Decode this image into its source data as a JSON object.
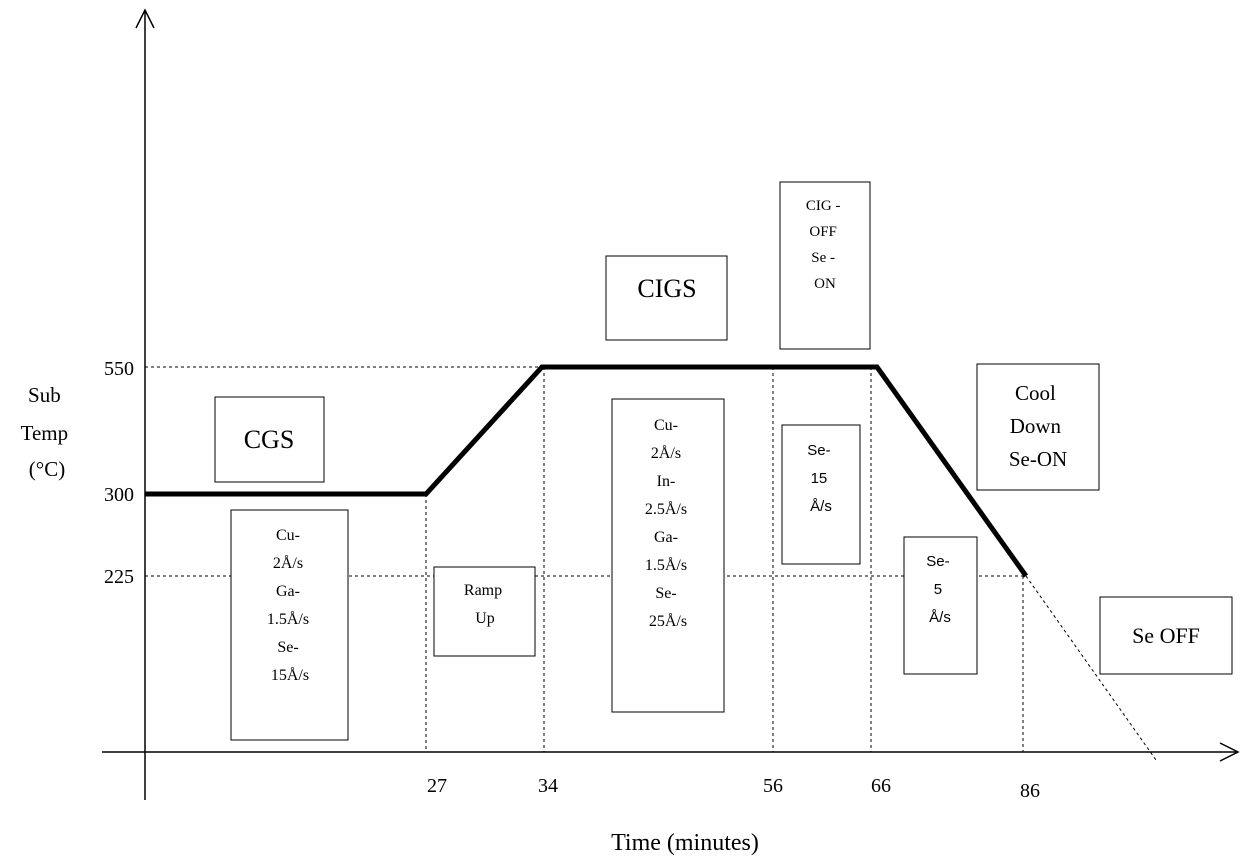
{
  "y_axis_label": [
    "Sub",
    "Temp",
    "(°C)"
  ],
  "x_axis_label": "Time (minutes)",
  "y_ticks": [
    {
      "label": "550",
      "value": 550
    },
    {
      "label": "300",
      "value": 300
    },
    {
      "label": "225",
      "value": 225
    }
  ],
  "x_ticks": [
    {
      "label": "27",
      "value": 27
    },
    {
      "label": "34",
      "value": 34
    },
    {
      "label": "56",
      "value": 56
    },
    {
      "label": "66",
      "value": 66
    },
    {
      "label": "86",
      "value": 86
    }
  ],
  "temperature_profile": [
    {
      "t": 0,
      "temp": 300
    },
    {
      "t": 27,
      "temp": 300
    },
    {
      "t": 34,
      "temp": 550
    },
    {
      "t": 66,
      "temp": 550
    },
    {
      "t": 86,
      "temp": 225
    }
  ],
  "boxes": {
    "cgs_title": [
      "CGS"
    ],
    "cgs_rates": [
      "Cu-",
      "2Å/s",
      "Ga-",
      "1.5Å/s",
      "Se-",
      "15Å/s"
    ],
    "ramp_up": [
      "Ramp",
      "Up"
    ],
    "cigs_title": [
      "CIGS"
    ],
    "cigs_rates": [
      "Cu-",
      "2Å/s",
      "In-",
      "2.5Å/s",
      "Ga-",
      "1.5Å/s",
      "Se-",
      "25Å/s"
    ],
    "cig_off": [
      "CIG -",
      "OFF",
      "Se -",
      "ON"
    ],
    "se_15": [
      "Se-",
      "15",
      "Å/s"
    ],
    "cool_down": [
      "Cool",
      "Down",
      "Se-ON"
    ],
    "se_5": [
      "Se-",
      "5",
      "Å/s"
    ],
    "se_off": [
      "Se OFF"
    ]
  }
}
